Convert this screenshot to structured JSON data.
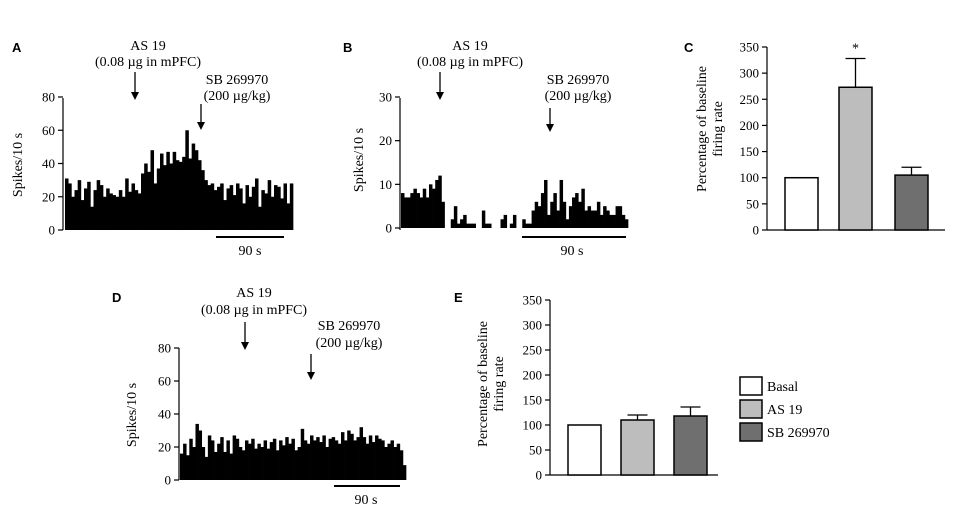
{
  "panels": {
    "A": "A",
    "B": "B",
    "C": "C",
    "D": "D",
    "E": "E"
  },
  "annotations": {
    "drug1": "AS 19",
    "drug1_dose": "(0.08 µg in mPFC)",
    "drug2": "SB 269970",
    "drug2_dose": "(200 µg/kg)",
    "scale": "90 s"
  },
  "legend": [
    {
      "label": "Basal",
      "color": "#ffffff"
    },
    {
      "label": "AS 19",
      "color": "#bdbdbd"
    },
    {
      "label": "SB 269970",
      "color": "#6f6f6f"
    }
  ],
  "chart_data": [
    {
      "panel": "A",
      "type": "bar",
      "ylabel": "Spikes/10 s",
      "ylim": [
        0,
        80
      ],
      "yticks": [
        0,
        20,
        40,
        60,
        80
      ],
      "values": [
        31,
        28,
        20,
        24,
        30,
        18,
        25,
        29,
        14,
        24,
        30,
        27,
        20,
        25,
        22,
        21,
        20,
        24,
        20,
        31,
        23,
        28,
        24,
        22,
        34,
        40,
        35,
        48,
        28,
        37,
        46,
        39,
        47,
        40,
        47,
        42,
        41,
        44,
        60,
        43,
        52,
        48,
        42,
        36,
        30,
        27,
        28,
        24,
        26,
        28,
        18,
        25,
        27,
        21,
        28,
        25,
        16,
        27,
        20,
        26,
        31,
        14,
        24,
        22,
        30,
        20,
        27,
        26,
        19,
        28,
        16,
        28
      ]
    },
    {
      "panel": "B",
      "type": "bar",
      "ylabel": "Spikes/10 s",
      "ylim": [
        0,
        30
      ],
      "yticks": [
        0,
        10,
        20,
        30
      ],
      "values": [
        8,
        7,
        7,
        8,
        9,
        8,
        7,
        9,
        7,
        10,
        9,
        11,
        12,
        6,
        0,
        0,
        2,
        5,
        1,
        2,
        3,
        1,
        1,
        1,
        0,
        0,
        4,
        1,
        1,
        0,
        0,
        0,
        2,
        3,
        0,
        1,
        3,
        0,
        0,
        2,
        1,
        1,
        4,
        6,
        5,
        8,
        11,
        3,
        6,
        8,
        4,
        11,
        6,
        2,
        5,
        7,
        8,
        6,
        9,
        4,
        5,
        4,
        4,
        6,
        3,
        5,
        4,
        3,
        3,
        5,
        5,
        3,
        2
      ]
    },
    {
      "panel": "C",
      "type": "bar",
      "ylabel": "Percentage of baseline firing rate",
      "ylim": [
        0,
        350
      ],
      "yticks": [
        0,
        50,
        100,
        150,
        200,
        250,
        300,
        350
      ],
      "categories": [
        "Basal",
        "AS 19",
        "SB 269970"
      ],
      "values": [
        100,
        273,
        105
      ],
      "errors": [
        0,
        55,
        15
      ],
      "significance": [
        "",
        "*",
        ""
      ]
    },
    {
      "panel": "D",
      "type": "bar",
      "ylabel": "Spikes/10 s",
      "ylim": [
        0,
        80
      ],
      "yticks": [
        0,
        20,
        40,
        60,
        80
      ],
      "values": [
        16,
        22,
        15,
        25,
        20,
        34,
        30,
        20,
        14,
        27,
        24,
        17,
        22,
        26,
        17,
        24,
        16,
        27,
        25,
        20,
        18,
        24,
        22,
        25,
        19,
        22,
        20,
        24,
        19,
        23,
        25,
        18,
        24,
        21,
        26,
        22,
        25,
        18,
        20,
        31,
        24,
        22,
        27,
        24,
        26,
        23,
        27,
        20,
        25,
        26,
        24,
        22,
        29,
        24,
        30,
        28,
        24,
        26,
        32,
        26,
        22,
        27,
        23,
        27,
        25,
        24,
        20,
        22,
        24,
        20,
        22,
        18,
        9
      ]
    },
    {
      "panel": "E",
      "type": "bar",
      "ylabel": "Percentage of baseline firing rate",
      "ylim": [
        0,
        350
      ],
      "yticks": [
        0,
        50,
        100,
        150,
        200,
        250,
        300,
        350
      ],
      "categories": [
        "Basal",
        "AS 19",
        "SB 269970"
      ],
      "values": [
        100,
        110,
        118
      ],
      "errors": [
        0,
        10,
        18
      ],
      "significance": [
        "",
        "",
        ""
      ]
    }
  ]
}
